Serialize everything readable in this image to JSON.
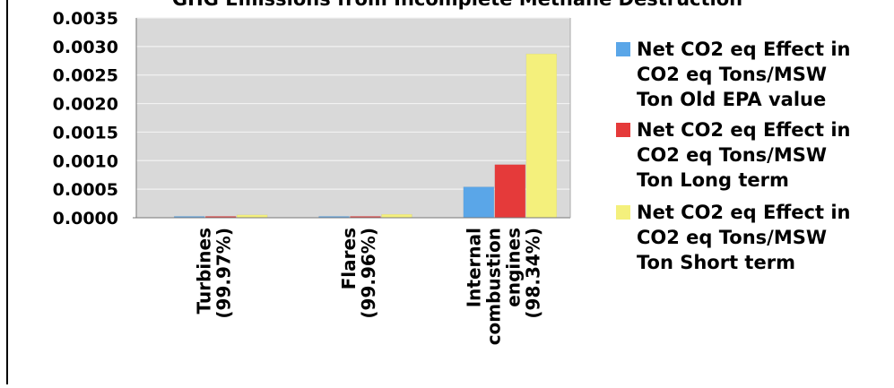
{
  "chart_data": {
    "type": "bar",
    "title": "GHG Emissions from Incomplete Methane Destruction",
    "xlabel": "",
    "ylabel": "",
    "categories": [
      [
        "Turbines",
        "(99.97%)"
      ],
      [
        "Flares",
        "(99.96%)"
      ],
      [
        "Internal",
        "combustion",
        "engines",
        "(98.34%)"
      ]
    ],
    "series": [
      {
        "name": [
          "Net CO2 eq Effect in",
          "CO2 eq Tons/MSW",
          "Ton Old EPA value"
        ],
        "color": "#5aa6e8",
        "values": [
          1e-05,
          1e-05,
          0.00054
        ]
      },
      {
        "name": [
          "Net CO2 eq Effect in",
          "CO2 eq Tons/MSW",
          "Ton Long term"
        ],
        "color": "#e53a3a",
        "values": [
          2e-05,
          2e-05,
          0.00093
        ]
      },
      {
        "name": [
          "Net CO2 eq Effect in",
          "CO2 eq Tons/MSW",
          "Ton Short term"
        ],
        "color": "#f4f07c",
        "values": [
          5e-05,
          6e-05,
          0.00287
        ]
      }
    ],
    "ylim": [
      0,
      0.0035
    ],
    "yticks": [
      "0.0000",
      "0.0005",
      "0.0010",
      "0.0015",
      "0.0020",
      "0.0025",
      "0.0030",
      "0.0035"
    ],
    "grid": true,
    "legend": "right"
  },
  "colors": {
    "plot_background": "#d9d9d9",
    "gridline": "#f2f2f2"
  }
}
